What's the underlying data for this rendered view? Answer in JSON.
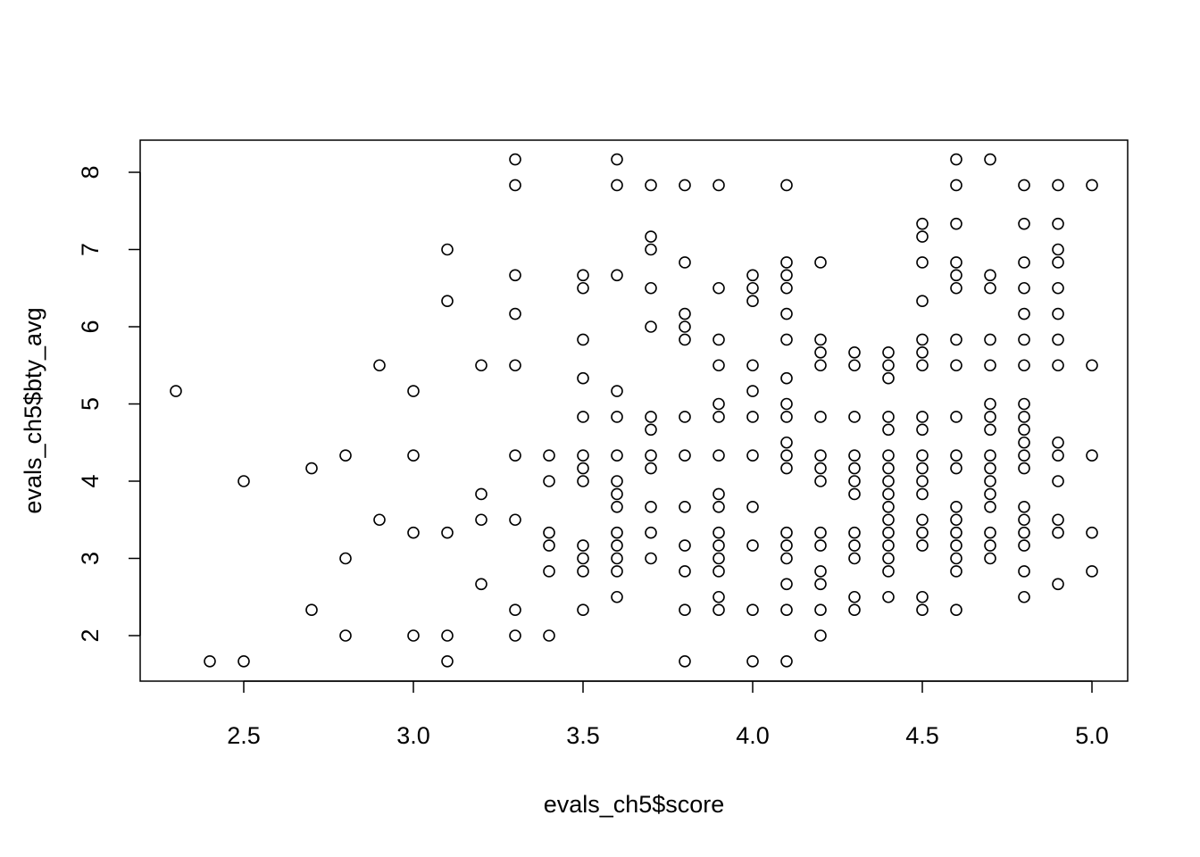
{
  "chart_data": {
    "type": "scatter",
    "title": "",
    "xlabel": "evals_ch5$score",
    "ylabel": "evals_ch5$bty_avg",
    "xlim": [
      2.3,
      5.0
    ],
    "ylim": [
      1.667,
      8.167
    ],
    "xticks": [
      2.5,
      3.0,
      3.5,
      4.0,
      4.5,
      5.0
    ],
    "xtick_labels": [
      "2.5",
      "3.0",
      "3.5",
      "4.0",
      "4.5",
      "5.0"
    ],
    "yticks": [
      2,
      3,
      4,
      5,
      6,
      7,
      8
    ],
    "ytick_labels": [
      "2",
      "3",
      "4",
      "5",
      "6",
      "7",
      "8"
    ],
    "grid": false,
    "legend": "none",
    "marker": "open-circle",
    "points": [
      [
        2.3,
        5.167
      ],
      [
        2.4,
        1.667
      ],
      [
        2.5,
        4.0
      ],
      [
        2.5,
        1.667
      ],
      [
        2.7,
        4.167
      ],
      [
        2.7,
        2.333
      ],
      [
        2.8,
        4.333
      ],
      [
        2.8,
        3.0
      ],
      [
        2.8,
        2.0
      ],
      [
        2.9,
        5.5
      ],
      [
        2.9,
        3.5
      ],
      [
        3.0,
        5.167
      ],
      [
        3.0,
        4.333
      ],
      [
        3.0,
        3.333
      ],
      [
        3.0,
        2.0
      ],
      [
        3.1,
        7.0
      ],
      [
        3.1,
        6.333
      ],
      [
        3.1,
        3.333
      ],
      [
        3.1,
        2.0
      ],
      [
        3.1,
        1.667
      ],
      [
        3.2,
        5.5
      ],
      [
        3.2,
        3.833
      ],
      [
        3.2,
        3.5
      ],
      [
        3.2,
        2.667
      ],
      [
        3.3,
        8.167
      ],
      [
        3.3,
        7.833
      ],
      [
        3.3,
        6.667
      ],
      [
        3.3,
        6.167
      ],
      [
        3.3,
        5.5
      ],
      [
        3.3,
        4.333
      ],
      [
        3.3,
        3.5
      ],
      [
        3.3,
        2.333
      ],
      [
        3.3,
        2.0
      ],
      [
        3.4,
        4.333
      ],
      [
        3.4,
        4.0
      ],
      [
        3.4,
        3.333
      ],
      [
        3.4,
        3.167
      ],
      [
        3.4,
        2.833
      ],
      [
        3.4,
        2.0
      ],
      [
        3.5,
        6.667
      ],
      [
        3.5,
        6.5
      ],
      [
        3.5,
        5.833
      ],
      [
        3.5,
        5.333
      ],
      [
        3.5,
        4.833
      ],
      [
        3.5,
        4.333
      ],
      [
        3.5,
        4.167
      ],
      [
        3.5,
        4.0
      ],
      [
        3.5,
        3.167
      ],
      [
        3.5,
        3.0
      ],
      [
        3.5,
        2.833
      ],
      [
        3.5,
        2.333
      ],
      [
        3.6,
        8.167
      ],
      [
        3.6,
        7.833
      ],
      [
        3.6,
        6.667
      ],
      [
        3.6,
        5.167
      ],
      [
        3.6,
        4.833
      ],
      [
        3.6,
        4.333
      ],
      [
        3.6,
        4.0
      ],
      [
        3.6,
        3.833
      ],
      [
        3.6,
        3.667
      ],
      [
        3.6,
        3.333
      ],
      [
        3.6,
        3.167
      ],
      [
        3.6,
        3.0
      ],
      [
        3.6,
        2.833
      ],
      [
        3.6,
        2.5
      ],
      [
        3.7,
        7.833
      ],
      [
        3.7,
        7.167
      ],
      [
        3.7,
        7.0
      ],
      [
        3.7,
        6.5
      ],
      [
        3.7,
        6.0
      ],
      [
        3.7,
        4.833
      ],
      [
        3.7,
        4.667
      ],
      [
        3.7,
        4.333
      ],
      [
        3.7,
        4.167
      ],
      [
        3.7,
        3.667
      ],
      [
        3.7,
        3.333
      ],
      [
        3.7,
        3.0
      ],
      [
        3.8,
        7.833
      ],
      [
        3.8,
        6.833
      ],
      [
        3.8,
        6.167
      ],
      [
        3.8,
        6.0
      ],
      [
        3.8,
        5.833
      ],
      [
        3.8,
        4.833
      ],
      [
        3.8,
        4.333
      ],
      [
        3.8,
        3.667
      ],
      [
        3.8,
        3.167
      ],
      [
        3.8,
        2.833
      ],
      [
        3.8,
        2.333
      ],
      [
        3.8,
        1.667
      ],
      [
        3.9,
        7.833
      ],
      [
        3.9,
        6.5
      ],
      [
        3.9,
        5.833
      ],
      [
        3.9,
        5.5
      ],
      [
        3.9,
        5.0
      ],
      [
        3.9,
        4.833
      ],
      [
        3.9,
        4.333
      ],
      [
        3.9,
        3.833
      ],
      [
        3.9,
        3.667
      ],
      [
        3.9,
        3.333
      ],
      [
        3.9,
        3.167
      ],
      [
        3.9,
        3.0
      ],
      [
        3.9,
        2.833
      ],
      [
        3.9,
        2.5
      ],
      [
        3.9,
        2.333
      ],
      [
        4.0,
        6.667
      ],
      [
        4.0,
        6.5
      ],
      [
        4.0,
        6.333
      ],
      [
        4.0,
        5.5
      ],
      [
        4.0,
        5.167
      ],
      [
        4.0,
        4.833
      ],
      [
        4.0,
        4.333
      ],
      [
        4.0,
        3.667
      ],
      [
        4.0,
        3.167
      ],
      [
        4.0,
        2.333
      ],
      [
        4.0,
        1.667
      ],
      [
        4.1,
        7.833
      ],
      [
        4.1,
        6.833
      ],
      [
        4.1,
        6.667
      ],
      [
        4.1,
        6.5
      ],
      [
        4.1,
        6.167
      ],
      [
        4.1,
        5.833
      ],
      [
        4.1,
        5.333
      ],
      [
        4.1,
        5.0
      ],
      [
        4.1,
        4.833
      ],
      [
        4.1,
        4.5
      ],
      [
        4.1,
        4.333
      ],
      [
        4.1,
        4.167
      ],
      [
        4.1,
        3.333
      ],
      [
        4.1,
        3.167
      ],
      [
        4.1,
        3.0
      ],
      [
        4.1,
        2.667
      ],
      [
        4.1,
        2.333
      ],
      [
        4.1,
        1.667
      ],
      [
        4.2,
        6.833
      ],
      [
        4.2,
        5.833
      ],
      [
        4.2,
        5.667
      ],
      [
        4.2,
        5.5
      ],
      [
        4.2,
        4.833
      ],
      [
        4.2,
        4.333
      ],
      [
        4.2,
        4.167
      ],
      [
        4.2,
        4.0
      ],
      [
        4.2,
        3.333
      ],
      [
        4.2,
        3.167
      ],
      [
        4.2,
        2.833
      ],
      [
        4.2,
        2.667
      ],
      [
        4.2,
        2.333
      ],
      [
        4.2,
        2.0
      ],
      [
        4.3,
        5.667
      ],
      [
        4.3,
        5.5
      ],
      [
        4.3,
        4.833
      ],
      [
        4.3,
        4.333
      ],
      [
        4.3,
        4.167
      ],
      [
        4.3,
        4.0
      ],
      [
        4.3,
        3.833
      ],
      [
        4.3,
        3.333
      ],
      [
        4.3,
        3.167
      ],
      [
        4.3,
        3.0
      ],
      [
        4.3,
        2.5
      ],
      [
        4.3,
        2.333
      ],
      [
        4.4,
        5.667
      ],
      [
        4.4,
        5.5
      ],
      [
        4.4,
        5.333
      ],
      [
        4.4,
        4.833
      ],
      [
        4.4,
        4.667
      ],
      [
        4.4,
        4.333
      ],
      [
        4.4,
        4.167
      ],
      [
        4.4,
        4.0
      ],
      [
        4.4,
        3.833
      ],
      [
        4.4,
        3.667
      ],
      [
        4.4,
        3.5
      ],
      [
        4.4,
        3.333
      ],
      [
        4.4,
        3.167
      ],
      [
        4.4,
        3.0
      ],
      [
        4.4,
        2.833
      ],
      [
        4.4,
        2.5
      ],
      [
        4.5,
        7.333
      ],
      [
        4.5,
        7.167
      ],
      [
        4.5,
        6.833
      ],
      [
        4.5,
        6.333
      ],
      [
        4.5,
        5.833
      ],
      [
        4.5,
        5.667
      ],
      [
        4.5,
        5.5
      ],
      [
        4.5,
        4.833
      ],
      [
        4.5,
        4.667
      ],
      [
        4.5,
        4.333
      ],
      [
        4.5,
        4.167
      ],
      [
        4.5,
        4.0
      ],
      [
        4.5,
        3.833
      ],
      [
        4.5,
        3.5
      ],
      [
        4.5,
        3.333
      ],
      [
        4.5,
        3.167
      ],
      [
        4.5,
        2.5
      ],
      [
        4.5,
        2.333
      ],
      [
        4.6,
        8.167
      ],
      [
        4.6,
        7.833
      ],
      [
        4.6,
        7.333
      ],
      [
        4.6,
        6.833
      ],
      [
        4.6,
        6.667
      ],
      [
        4.6,
        6.5
      ],
      [
        4.6,
        5.833
      ],
      [
        4.6,
        5.5
      ],
      [
        4.6,
        4.833
      ],
      [
        4.6,
        4.333
      ],
      [
        4.6,
        4.167
      ],
      [
        4.6,
        3.667
      ],
      [
        4.6,
        3.5
      ],
      [
        4.6,
        3.333
      ],
      [
        4.6,
        3.167
      ],
      [
        4.6,
        3.0
      ],
      [
        4.6,
        2.833
      ],
      [
        4.6,
        2.333
      ],
      [
        4.7,
        8.167
      ],
      [
        4.7,
        6.667
      ],
      [
        4.7,
        6.5
      ],
      [
        4.7,
        5.833
      ],
      [
        4.7,
        5.5
      ],
      [
        4.7,
        5.0
      ],
      [
        4.7,
        4.833
      ],
      [
        4.7,
        4.667
      ],
      [
        4.7,
        4.333
      ],
      [
        4.7,
        4.167
      ],
      [
        4.7,
        4.0
      ],
      [
        4.7,
        3.833
      ],
      [
        4.7,
        3.667
      ],
      [
        4.7,
        3.333
      ],
      [
        4.7,
        3.167
      ],
      [
        4.7,
        3.0
      ],
      [
        4.8,
        7.833
      ],
      [
        4.8,
        7.333
      ],
      [
        4.8,
        6.833
      ],
      [
        4.8,
        6.5
      ],
      [
        4.8,
        6.167
      ],
      [
        4.8,
        5.833
      ],
      [
        4.8,
        5.5
      ],
      [
        4.8,
        5.0
      ],
      [
        4.8,
        4.833
      ],
      [
        4.8,
        4.667
      ],
      [
        4.8,
        4.5
      ],
      [
        4.8,
        4.333
      ],
      [
        4.8,
        4.167
      ],
      [
        4.8,
        3.667
      ],
      [
        4.8,
        3.5
      ],
      [
        4.8,
        3.333
      ],
      [
        4.8,
        3.167
      ],
      [
        4.8,
        2.833
      ],
      [
        4.8,
        2.5
      ],
      [
        4.9,
        7.833
      ],
      [
        4.9,
        7.333
      ],
      [
        4.9,
        7.0
      ],
      [
        4.9,
        6.833
      ],
      [
        4.9,
        6.5
      ],
      [
        4.9,
        6.167
      ],
      [
        4.9,
        5.833
      ],
      [
        4.9,
        5.5
      ],
      [
        4.9,
        4.5
      ],
      [
        4.9,
        4.333
      ],
      [
        4.9,
        4.0
      ],
      [
        4.9,
        3.5
      ],
      [
        4.9,
        3.333
      ],
      [
        4.9,
        2.667
      ],
      [
        5.0,
        7.833
      ],
      [
        5.0,
        5.5
      ],
      [
        5.0,
        4.333
      ],
      [
        5.0,
        3.333
      ],
      [
        5.0,
        2.833
      ]
    ]
  }
}
